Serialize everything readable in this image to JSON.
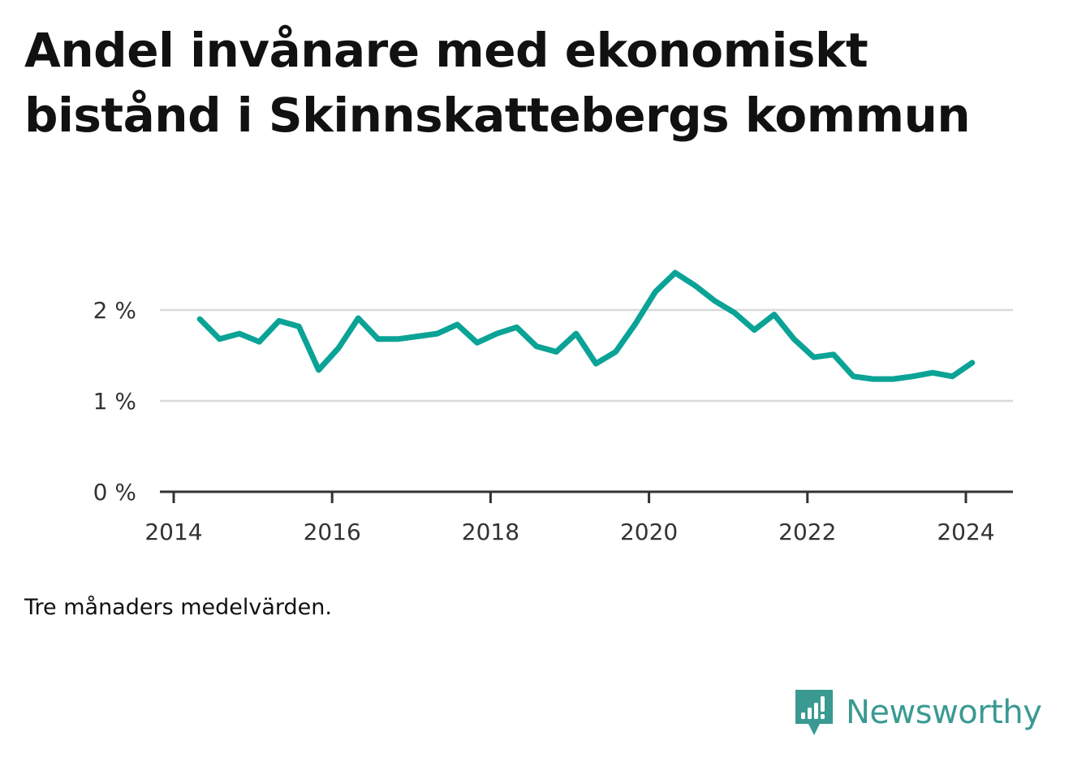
{
  "title": "Andel invånare med ekonomiskt bistånd i Skinnskattebergs kommun",
  "note": "Tre månaders medelvärden.",
  "brand": {
    "name": "Newsworthy",
    "icon": "bar-chart-speech-bubble-icon",
    "color": "#3a9a92"
  },
  "colors": {
    "line": "#0aa396",
    "grid": "#d9d9d9",
    "axis": "#333333"
  },
  "chart_data": {
    "type": "line",
    "title": "Andel invånare med ekonomiskt bistånd i Skinnskattebergs kommun",
    "xlabel": "",
    "ylabel": "",
    "xlim": [
      2014,
      2024.4
    ],
    "ylim": [
      0,
      2.2
    ],
    "x_ticks": [
      2014,
      2016,
      2018,
      2020,
      2022,
      2024
    ],
    "x_tick_labels": [
      "2014",
      "2016",
      "2018",
      "2020",
      "2022",
      "2024"
    ],
    "y_ticks": [
      0,
      1,
      2
    ],
    "y_tick_labels": [
      "0 %",
      "1 %",
      "2 %"
    ],
    "grid": "horizontal",
    "legend": "none",
    "series": [
      {
        "x": [
          2014.33,
          2014.58,
          2014.83,
          2015.08,
          2015.33,
          2015.58,
          2015.83,
          2016.08,
          2016.33,
          2016.58,
          2016.83,
          2017.08,
          2017.33,
          2017.58,
          2017.83,
          2018.08,
          2018.33,
          2018.58,
          2018.83,
          2019.08,
          2019.33,
          2019.58,
          2019.83,
          2020.08,
          2020.33,
          2020.58,
          2020.83,
          2021.08,
          2021.33,
          2021.58,
          2021.83,
          2022.08,
          2022.33,
          2022.58,
          2022.83,
          2023.08,
          2023.33,
          2023.58,
          2023.83,
          2024.08
        ],
        "values": [
          1.9,
          1.68,
          1.74,
          1.65,
          1.88,
          1.82,
          1.34,
          1.58,
          1.91,
          1.68,
          1.68,
          1.71,
          1.74,
          1.84,
          1.64,
          1.74,
          1.81,
          1.6,
          1.54,
          1.74,
          1.41,
          1.54,
          1.85,
          2.2,
          2.41,
          2.27,
          2.1,
          1.97,
          1.78,
          1.95,
          1.68,
          1.48,
          1.51,
          1.27,
          1.24,
          1.24,
          1.27,
          1.31,
          1.27,
          1.42
        ]
      }
    ]
  }
}
